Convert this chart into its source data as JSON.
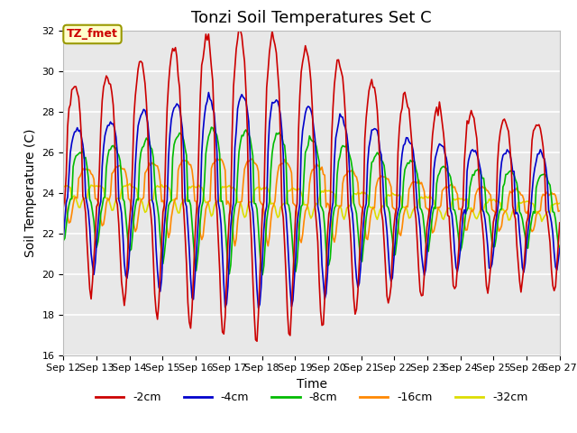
{
  "title": "Tonzi Soil Temperatures Set C",
  "xlabel": "Time",
  "ylabel": "Soil Temperature (C)",
  "ylim": [
    16,
    32
  ],
  "xtick_labels": [
    "Sep 12",
    "Sep 13",
    "Sep 14",
    "Sep 15",
    "Sep 16",
    "Sep 17",
    "Sep 18",
    "Sep 19",
    "Sep 20",
    "Sep 21",
    "Sep 22",
    "Sep 23",
    "Sep 24",
    "Sep 25",
    "Sep 26",
    "Sep 27"
  ],
  "series_colors": [
    "#cc0000",
    "#0000cc",
    "#00bb00",
    "#ff8800",
    "#dddd00"
  ],
  "series_labels": [
    "-2cm",
    "-4cm",
    "-8cm",
    "-16cm",
    "-32cm"
  ],
  "line_width": 1.2,
  "annotation_text": "TZ_fmet",
  "bg_color": "#e8e8e8",
  "grid_color": "#ffffff",
  "title_fontsize": 13,
  "label_fontsize": 10,
  "tick_fontsize": 8
}
